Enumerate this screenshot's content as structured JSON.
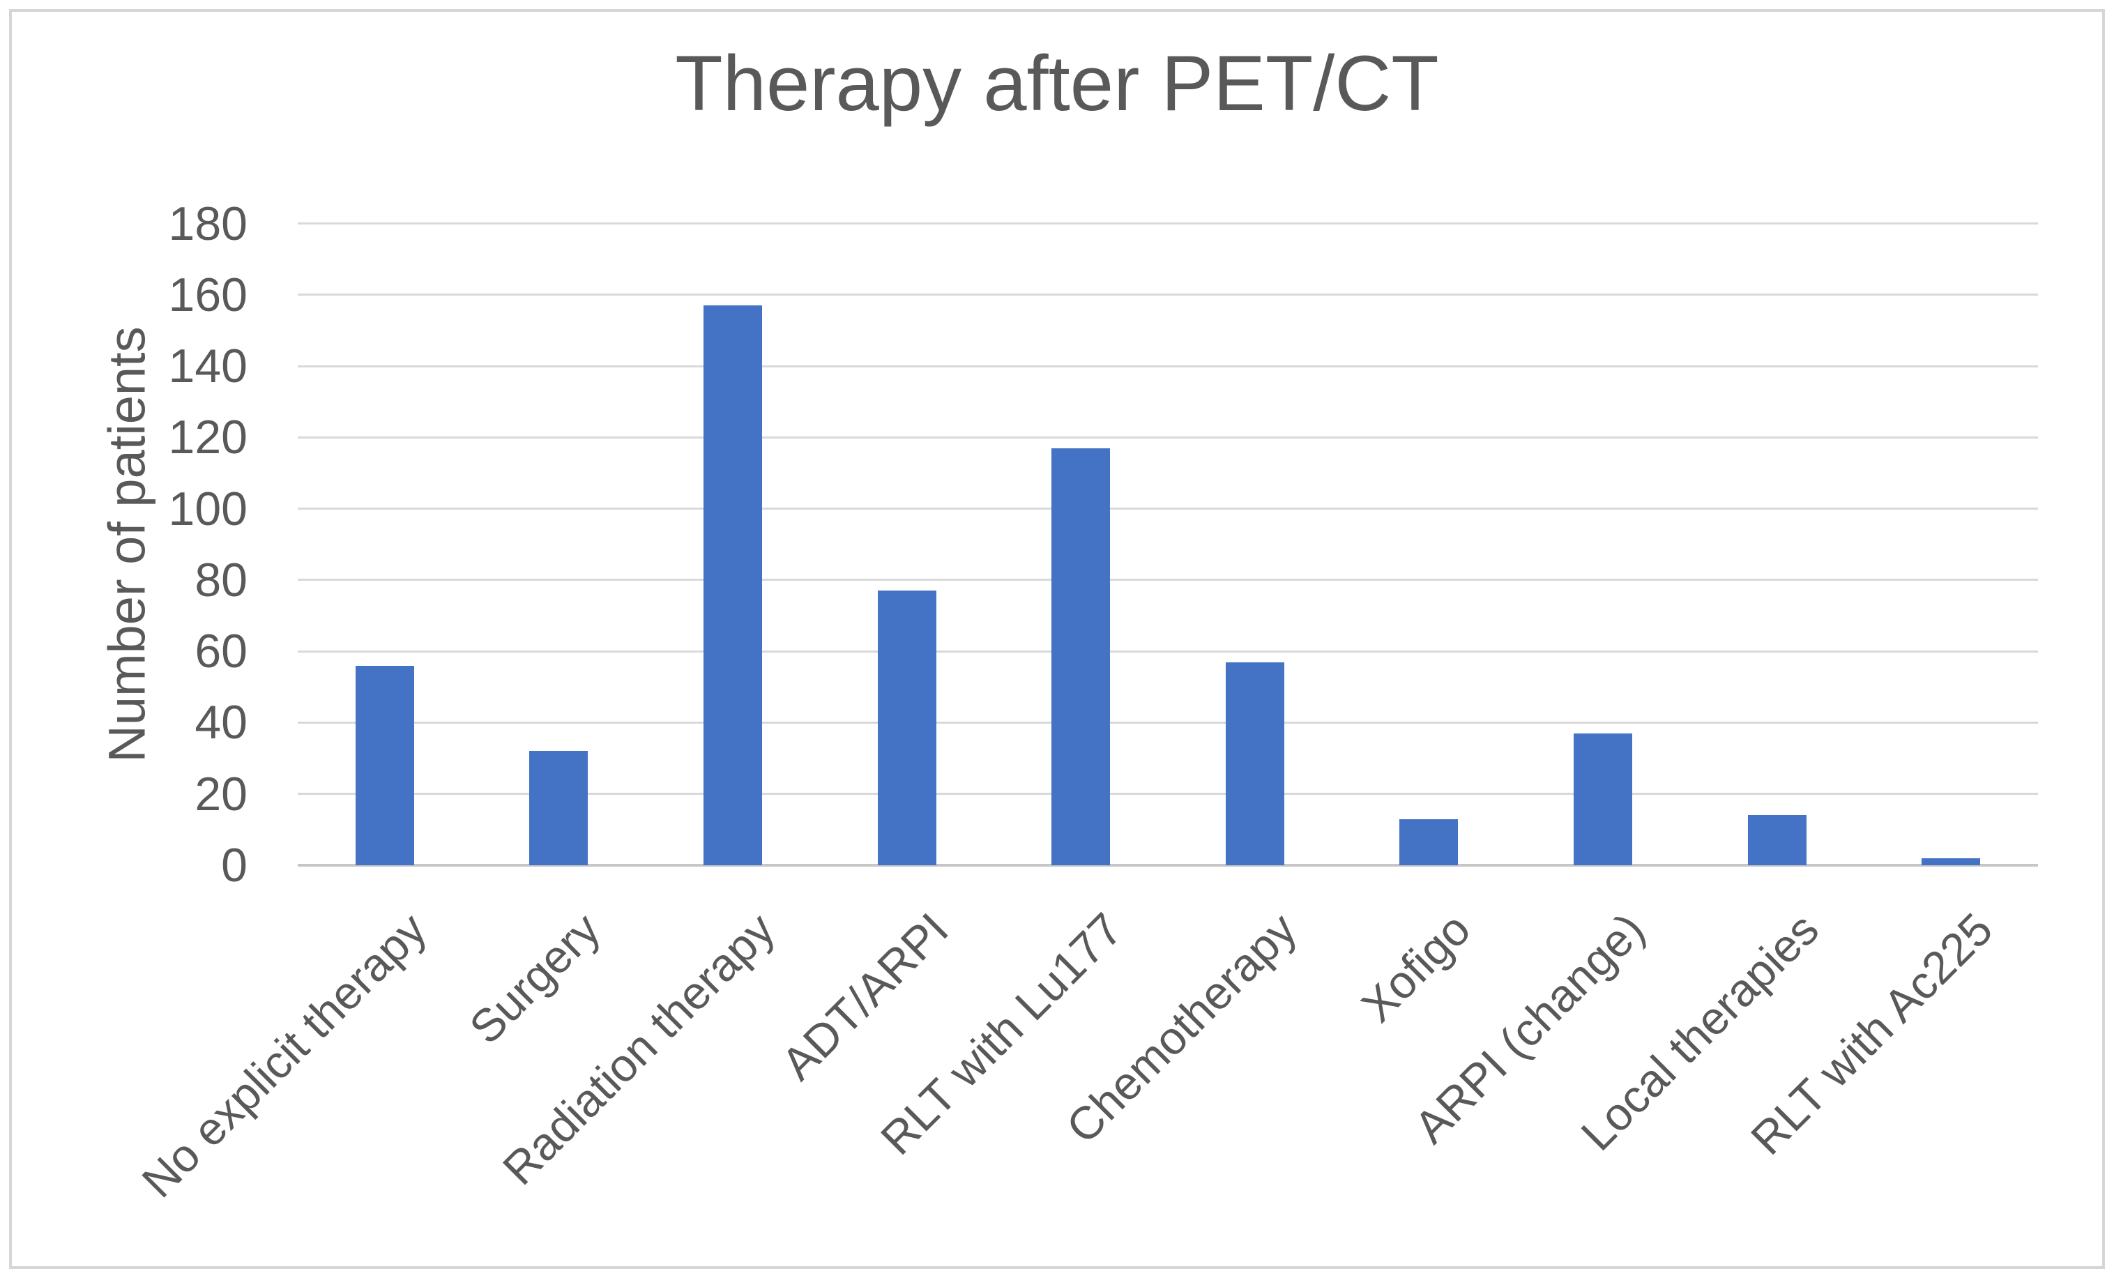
{
  "chart_data": {
    "type": "bar",
    "title": "Therapy after PET/CT",
    "ylabel": "Number of patients",
    "xlabel": "",
    "categories": [
      "No explicit therapy",
      "Surgery",
      "Radiation therapy",
      "ADT/ARPI",
      "RLT with Lu177",
      "Chemotherapy",
      "Xofigo",
      "ARPI (change)",
      "Local therapies",
      "RLT with Ac225"
    ],
    "values": [
      56,
      32,
      157,
      77,
      117,
      57,
      13,
      37,
      14,
      2
    ],
    "yticks": [
      0,
      20,
      40,
      60,
      80,
      100,
      120,
      140,
      160,
      180
    ],
    "ylim": [
      0,
      180
    ],
    "grid": "horizontal",
    "legend_position": "none",
    "bar_color": "#4472C4",
    "text_color": "#595959",
    "gridline_color": "#D9D9D9",
    "axis_line_color": "#C6C6C6",
    "border_color": "#D6D6D6",
    "background_color": "#FFFFFF"
  }
}
